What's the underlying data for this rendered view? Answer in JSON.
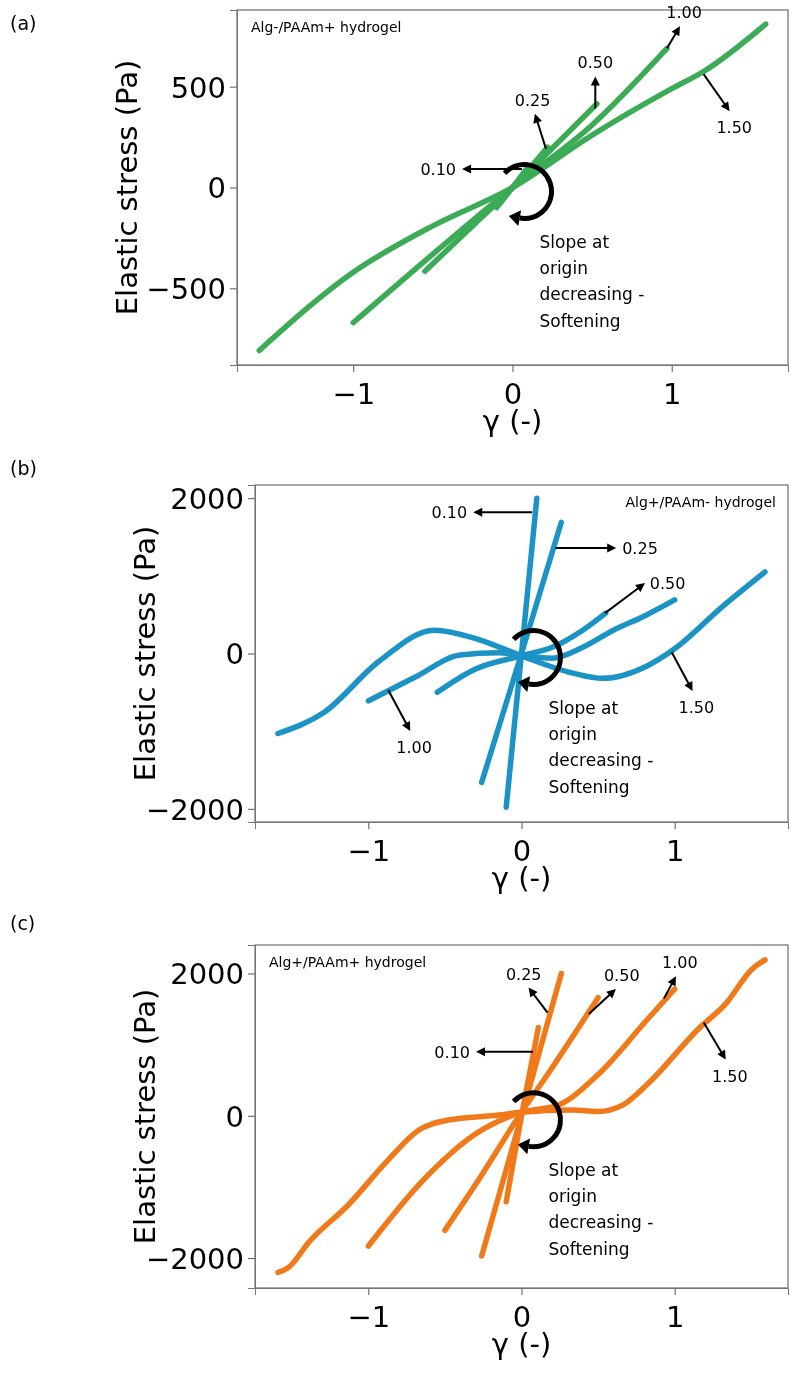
{
  "chart_data": [
    {
      "type": "line",
      "title": "(a)",
      "xlabel": "γ (-)",
      "ylabel": "Elastic stress (Pa)",
      "xlim": [
        -1.73,
        1.73
      ],
      "ylim": [
        -880,
        880
      ],
      "xticks": [
        -1,
        0,
        1
      ],
      "yticks": [
        -500,
        0,
        500
      ],
      "series": [
        {
          "color": "#3cab55",
          "x": [
            -1.59,
            -1,
            -0.5,
            0,
            0.5,
            1,
            1.2,
            1.59
          ],
          "values": [
            -808,
            -420,
            -190,
            0,
            260,
            490,
            575,
            810
          ]
        },
        {
          "color": "#3cab55",
          "x": [
            -1,
            -0.5,
            0,
            0.5,
            0.97
          ],
          "values": [
            -670,
            -330,
            0,
            310,
            690
          ]
        },
        {
          "color": "#3cab55",
          "x": [
            -0.55,
            0,
            0.53
          ],
          "values": [
            -415,
            0,
            415
          ]
        },
        {
          "color": "#3cab55",
          "x": [
            -0.27,
            0,
            0.22
          ],
          "values": [
            -200,
            0,
            200
          ]
        },
        {
          "color": "#3cab55",
          "x": [
            -0.1,
            0,
            0.1
          ],
          "values": [
            -100,
            0,
            105
          ]
        }
      ],
      "annotations": [
        {
          "text": "0.10",
          "x": 0.06,
          "y": 92
        },
        {
          "text": "0.25",
          "x": 0.21,
          "y": 192
        },
        {
          "text": "0.50",
          "x": 0.52,
          "y": 392
        },
        {
          "text": "1.00",
          "x": 0.97,
          "y": 690
        },
        {
          "text": "1.50",
          "x": 1.2,
          "y": 562
        },
        "Alg-/PAAm+ hydrogel",
        "Slope at origin decreasing - Softening"
      ]
    },
    {
      "type": "line",
      "title": "(b)",
      "xlabel": "γ (-)",
      "ylabel": "Elastic stress (Pa)",
      "xlim": [
        -1.74,
        1.74
      ],
      "ylim": [
        -2170,
        2170
      ],
      "xticks": [
        -1,
        0,
        1
      ],
      "yticks": [
        -2000,
        0,
        2000
      ],
      "series": [
        {
          "color": "#1b93c4",
          "x": [
            -1.59,
            -1.29,
            -0.93,
            -0.57,
            -0.28,
            0,
            0.33,
            0.53,
            0.82,
            1.0,
            1.31,
            1.59
          ],
          "values": [
            -1030,
            -760,
            -100,
            300,
            180,
            -30,
            -250,
            -320,
            -160,
            60,
            600,
            1050
          ]
        },
        {
          "color": "#1b93c4",
          "x": [
            -1,
            -0.7,
            -0.4,
            -0.15,
            0,
            0.2,
            0.4,
            0.6,
            0.8,
            1
          ],
          "values": [
            -610,
            -310,
            -20,
            10,
            -30,
            -60,
            80,
            300,
            480,
            690
          ]
        },
        {
          "color": "#1b93c4",
          "x": [
            -0.55,
            -0.3,
            0,
            0.2,
            0.4,
            0.55
          ],
          "values": [
            -500,
            -200,
            -30,
            80,
            300,
            520
          ]
        },
        {
          "color": "#1b93c4",
          "x": [
            -0.26,
            0,
            0.26
          ],
          "values": [
            -1660,
            0,
            1690
          ]
        },
        {
          "color": "#1b93c4",
          "x": [
            -0.1,
            0,
            0.1
          ],
          "values": [
            -1980,
            0,
            2000
          ]
        }
      ],
      "annotations": [
        {
          "text": "0.10",
          "x": 0.07,
          "y": 1820
        },
        {
          "text": "0.25",
          "x": 0.22,
          "y": 1360
        },
        {
          "text": "0.50",
          "x": 0.545,
          "y": 520
        },
        {
          "text": "1.00",
          "x": -0.87,
          "y": -470
        },
        {
          "text": "1.50",
          "x": 0.98,
          "y": 20
        },
        "Alg+/PAAm- hydrogel",
        "Slope at origin decreasing - Softening"
      ]
    },
    {
      "type": "line",
      "title": "(c)",
      "xlabel": "γ (-)",
      "ylabel": "Elastic stress (Pa)",
      "xlim": [
        -1.74,
        1.74
      ],
      "ylim": [
        -2420,
        2400
      ],
      "xticks": [
        -1,
        0,
        1
      ],
      "yticks": [
        -2000,
        0,
        2000
      ],
      "series": [
        {
          "color": "#f07a1a",
          "x": [
            -1.59,
            -1.52,
            -1.39,
            -1.13,
            -0.87,
            -0.67,
            -0.48,
            -0.15,
            0,
            0.33,
            0.5,
            0.66,
            0.82,
            1.15,
            1.34,
            1.5,
            1.59
          ],
          "values": [
            -2200,
            -2130,
            -1780,
            -1250,
            -620,
            -200,
            -60,
            10,
            50,
            80,
            60,
            150,
            440,
            1210,
            1590,
            2050,
            2190
          ]
        },
        {
          "color": "#f07a1a",
          "x": [
            -1,
            -0.64,
            -0.31,
            0,
            0.24,
            0.5,
            0.82,
            1
          ],
          "values": [
            -1830,
            -900,
            -270,
            50,
            150,
            580,
            1350,
            1780
          ]
        },
        {
          "color": "#f07a1a",
          "x": [
            -0.5,
            -0.28,
            0,
            0.17,
            0.5
          ],
          "values": [
            -1610,
            -900,
            50,
            580,
            1660
          ]
        },
        {
          "color": "#f07a1a",
          "x": [
            -0.26,
            0,
            0.26
          ],
          "values": [
            -1970,
            0,
            2000
          ]
        },
        {
          "color": "#f07a1a",
          "x": [
            -0.1,
            0,
            0.11
          ],
          "values": [
            -1210,
            0,
            1240
          ]
        }
      ],
      "annotations": [
        {
          "text": "0.10",
          "x": 0.075,
          "y": 900
        },
        {
          "text": "0.25",
          "x": 0.17,
          "y": 1450
        },
        {
          "text": "0.50",
          "x": 0.44,
          "y": 1430
        },
        {
          "text": "1.00",
          "x": 0.93,
          "y": 1650
        },
        {
          "text": "1.50",
          "x": 1.19,
          "y": 1310
        },
        "Alg+/PAAm+ hydrogel",
        "Slope at origin decreasing - Softening"
      ]
    }
  ]
}
